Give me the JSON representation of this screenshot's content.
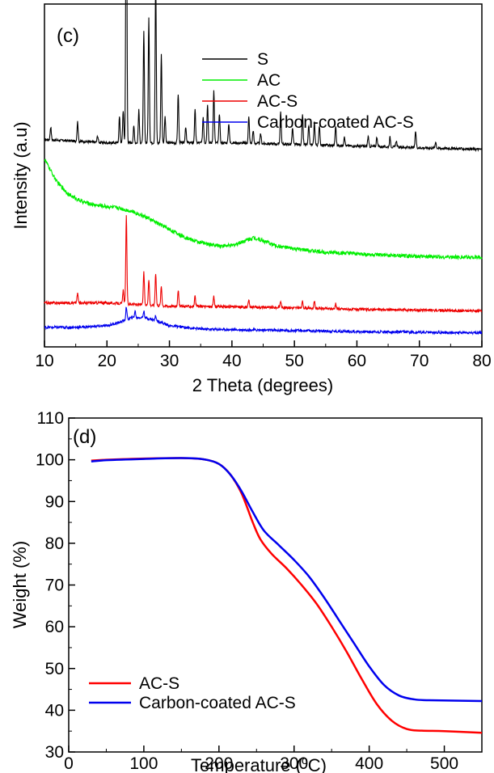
{
  "chart_data": [
    {
      "type": "line",
      "panel_label": "(c)",
      "title": "",
      "xlabel": "2 Theta (degrees)",
      "ylabel": "Intensity (a.u)",
      "xlim": [
        10,
        80
      ],
      "x_ticks": [
        10,
        20,
        30,
        40,
        50,
        60,
        70,
        80
      ],
      "y_ticks_shown": false,
      "grid": false,
      "legend_position": "top-right",
      "series": [
        {
          "name": "S",
          "color": "#000000",
          "baseline": [
            [
              10,
              0.61
            ],
            [
              20,
              0.6
            ],
            [
              30,
              0.6
            ],
            [
              40,
              0.6
            ],
            [
              50,
              0.595
            ],
            [
              60,
              0.59
            ],
            [
              70,
              0.585
            ],
            [
              80,
              0.58
            ]
          ],
          "peaks": [
            [
              11,
              0.04
            ],
            [
              15.3,
              0.06
            ],
            [
              18.5,
              0.02
            ],
            [
              22,
              0.08
            ],
            [
              22.6,
              0.1
            ],
            [
              23.1,
              0.98
            ],
            [
              24.3,
              0.05
            ],
            [
              25.1,
              0.1
            ],
            [
              25.9,
              0.34
            ],
            [
              26.7,
              0.38
            ],
            [
              27.8,
              0.5
            ],
            [
              28.7,
              0.27
            ],
            [
              29.3,
              0.08
            ],
            [
              31.4,
              0.15
            ],
            [
              32.6,
              0.05
            ],
            [
              34.1,
              0.1
            ],
            [
              35.4,
              0.08
            ],
            [
              36.1,
              0.12
            ],
            [
              37.1,
              0.16
            ],
            [
              38,
              0.09
            ],
            [
              39.5,
              0.06
            ],
            [
              42.7,
              0.08
            ],
            [
              43.4,
              0.04
            ],
            [
              44.6,
              0.03
            ],
            [
              47.8,
              0.1
            ],
            [
              49.7,
              0.05
            ],
            [
              51.3,
              0.09
            ],
            [
              52.3,
              0.06
            ],
            [
              53.2,
              0.07
            ],
            [
              54,
              0.06
            ],
            [
              56.6,
              0.06
            ],
            [
              58,
              0.03
            ],
            [
              61.8,
              0.03
            ],
            [
              63.2,
              0.03
            ],
            [
              65.3,
              0.03
            ],
            [
              66.3,
              0.02
            ],
            [
              69.4,
              0.05
            ],
            [
              72.6,
              0.02
            ]
          ]
        },
        {
          "name": "AC",
          "color": "#00ee00",
          "baseline": [
            [
              10,
              0.55
            ],
            [
              12,
              0.48
            ],
            [
              14,
              0.44
            ],
            [
              16,
              0.42
            ],
            [
              18,
              0.41
            ],
            [
              20,
              0.405
            ],
            [
              22,
              0.4
            ],
            [
              24,
              0.39
            ],
            [
              26,
              0.375
            ],
            [
              28,
              0.355
            ],
            [
              30,
              0.335
            ],
            [
              32,
              0.315
            ],
            [
              34,
              0.3
            ],
            [
              36,
              0.29
            ],
            [
              38,
              0.285
            ],
            [
              40,
              0.285
            ],
            [
              42,
              0.3
            ],
            [
              43.5,
              0.31
            ],
            [
              45,
              0.3
            ],
            [
              47,
              0.285
            ],
            [
              50,
              0.275
            ],
            [
              55,
              0.265
            ],
            [
              60,
              0.26
            ],
            [
              65,
              0.255
            ],
            [
              70,
              0.252
            ],
            [
              75,
              0.25
            ],
            [
              80,
              0.25
            ]
          ],
          "peaks": []
        },
        {
          "name": "AC-S",
          "color": "#ee0000",
          "baseline": [
            [
              10,
              0.11
            ],
            [
              20,
              0.11
            ],
            [
              25,
              0.105
            ],
            [
              30,
              0.1
            ],
            [
              40,
              0.098
            ],
            [
              50,
              0.095
            ],
            [
              60,
              0.09
            ],
            [
              70,
              0.088
            ],
            [
              80,
              0.085
            ]
          ],
          "peaks": [
            [
              15.3,
              0.03
            ],
            [
              22.6,
              0.04
            ],
            [
              23.1,
              0.27
            ],
            [
              25.9,
              0.1
            ],
            [
              26.7,
              0.08
            ],
            [
              27.8,
              0.1
            ],
            [
              28.7,
              0.06
            ],
            [
              31.4,
              0.05
            ],
            [
              34.1,
              0.03
            ],
            [
              37.1,
              0.03
            ],
            [
              42.7,
              0.02
            ],
            [
              47.8,
              0.02
            ],
            [
              51.3,
              0.02
            ],
            [
              53.2,
              0.02
            ],
            [
              56.6,
              0.015
            ]
          ]
        },
        {
          "name": "Carbon-coated AC-S",
          "color": "#0000ee",
          "baseline": [
            [
              10,
              0.035
            ],
            [
              15,
              0.035
            ],
            [
              20,
              0.04
            ],
            [
              22,
              0.05
            ],
            [
              24,
              0.065
            ],
            [
              26,
              0.065
            ],
            [
              28,
              0.055
            ],
            [
              30,
              0.04
            ],
            [
              35,
              0.03
            ],
            [
              40,
              0.028
            ],
            [
              50,
              0.025
            ],
            [
              60,
              0.022
            ],
            [
              70,
              0.02
            ],
            [
              80,
              0.018
            ]
          ],
          "peaks": [
            [
              23.1,
              0.04
            ],
            [
              24.5,
              0.02
            ],
            [
              25.9,
              0.02
            ],
            [
              27.8,
              0.015
            ]
          ]
        }
      ]
    },
    {
      "type": "line",
      "panel_label": "(d)",
      "title": "",
      "xlabel": "Temperature (",
      "xlabel_sup": "o",
      "xlabel_tail": "C)",
      "ylabel": "Weight (%)",
      "xlim": [
        0,
        550
      ],
      "ylim": [
        30,
        110
      ],
      "x_ticks": [
        0,
        100,
        200,
        300,
        400,
        500
      ],
      "y_ticks": [
        30,
        40,
        50,
        60,
        70,
        80,
        90,
        100,
        110
      ],
      "grid": false,
      "legend_position": "bottom-left",
      "series": [
        {
          "name": "AC-S",
          "color": "#ff0000",
          "points": [
            [
              30,
              99.8
            ],
            [
              50,
              100
            ],
            [
              100,
              100.3
            ],
            [
              150,
              100.4
            ],
            [
              180,
              100.1
            ],
            [
              200,
              99
            ],
            [
              215,
              96.5
            ],
            [
              230,
              92
            ],
            [
              245,
              85
            ],
            [
              255,
              81
            ],
            [
              270,
              77.5
            ],
            [
              290,
              74
            ],
            [
              310,
              70
            ],
            [
              330,
              65.5
            ],
            [
              350,
              60
            ],
            [
              370,
              54
            ],
            [
              390,
              47.5
            ],
            [
              410,
              41.5
            ],
            [
              430,
              37.5
            ],
            [
              450,
              35.5
            ],
            [
              470,
              35.1
            ],
            [
              500,
              35
            ],
            [
              550,
              34.6
            ]
          ]
        },
        {
          "name": "Carbon-coated AC-S",
          "color": "#0000ee",
          "points": [
            [
              30,
              99.6
            ],
            [
              50,
              99.9
            ],
            [
              100,
              100.2
            ],
            [
              150,
              100.4
            ],
            [
              180,
              100.1
            ],
            [
              200,
              99
            ],
            [
              215,
              96.5
            ],
            [
              230,
              92.5
            ],
            [
              245,
              87.5
            ],
            [
              260,
              83
            ],
            [
              280,
              79.5
            ],
            [
              300,
              76
            ],
            [
              320,
              72
            ],
            [
              340,
              67
            ],
            [
              360,
              61.5
            ],
            [
              380,
              56
            ],
            [
              400,
              50.5
            ],
            [
              420,
              46
            ],
            [
              440,
              43.5
            ],
            [
              460,
              42.6
            ],
            [
              480,
              42.4
            ],
            [
              550,
              42.2
            ]
          ]
        }
      ]
    }
  ]
}
